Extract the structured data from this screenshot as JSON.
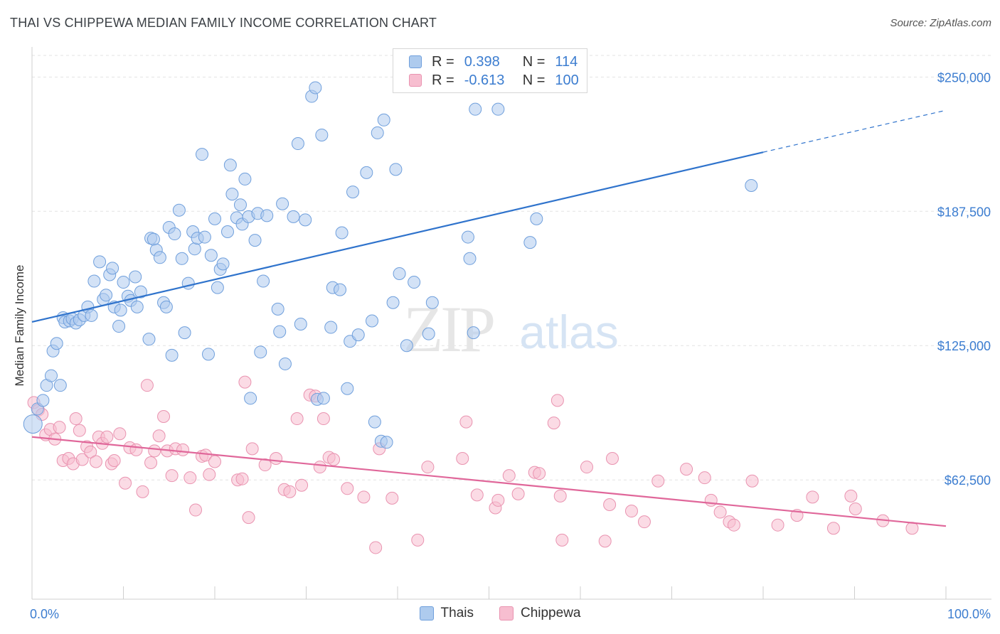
{
  "title": "THAI VS CHIPPEWA MEDIAN FAMILY INCOME CORRELATION CHART",
  "source": "Source: ZipAtlas.com",
  "watermark": {
    "zip": "ZIP",
    "atlas": "atlas"
  },
  "legend": {
    "rows": [
      {
        "r_label": "R =",
        "r_value": "0.398",
        "n_label": "N =",
        "n_value": "114"
      },
      {
        "r_label": "R =",
        "r_value": "-0.613",
        "n_label": "N =",
        "n_value": "100"
      }
    ]
  },
  "bottom_legend": {
    "thais": "Thais",
    "chippewa": "Chippewa"
  },
  "colors": {
    "thais_fill": "#aecbee",
    "thais_stroke": "#6f9fdc",
    "thais_line": "#2f73cc",
    "chippewa_fill": "#f7bed0",
    "chippewa_stroke": "#e993b0",
    "chippewa_line": "#e0679a",
    "axis_label": "#3c7dd0",
    "grid": "#e3e3e3"
  },
  "chart_data": {
    "type": "scatter",
    "title": "THAI VS CHIPPEWA MEDIAN FAMILY INCOME CORRELATION CHART",
    "xlabel": "",
    "ylabel": "Median Family Income",
    "xlim": [
      0,
      100
    ],
    "ylim": [
      7000,
      264000
    ],
    "x_tick_labels": [
      "0.0%",
      "100.0%"
    ],
    "y_ticks": [
      62500,
      125000,
      187500,
      250000
    ],
    "y_tick_labels": [
      "$62,500",
      "$125,000",
      "$187,500",
      "$250,000"
    ],
    "grid": true,
    "series": [
      {
        "name": "Thais",
        "R": 0.398,
        "N": 114,
        "trend": {
          "x0": 0,
          "y0": 136000,
          "x1": 80,
          "y1": 215000,
          "dash_x1": 100,
          "dash_y1": 234500
        },
        "points": [
          [
            0.1,
            88500
          ],
          [
            0.6,
            95500
          ],
          [
            1.2,
            99500
          ],
          [
            1.6,
            106500
          ],
          [
            2.1,
            111000
          ],
          [
            2.3,
            122500
          ],
          [
            2.7,
            126000
          ],
          [
            3.1,
            106500
          ],
          [
            3.4,
            138000
          ],
          [
            3.6,
            136000
          ],
          [
            4.1,
            136500
          ],
          [
            4.4,
            137500
          ],
          [
            4.8,
            135500
          ],
          [
            5.2,
            137000
          ],
          [
            5.7,
            139000
          ],
          [
            6.1,
            143000
          ],
          [
            6.5,
            139000
          ],
          [
            6.8,
            155000
          ],
          [
            7.4,
            164000
          ],
          [
            7.8,
            146500
          ],
          [
            8.1,
            148500
          ],
          [
            8.5,
            158000
          ],
          [
            8.8,
            161000
          ],
          [
            9.0,
            143000
          ],
          [
            9.5,
            134000
          ],
          [
            9.7,
            141500
          ],
          [
            10.0,
            154500
          ],
          [
            10.5,
            148000
          ],
          [
            10.8,
            146000
          ],
          [
            11.3,
            157000
          ],
          [
            11.5,
            143000
          ],
          [
            11.9,
            150000
          ],
          [
            12.8,
            128000
          ],
          [
            13.0,
            175000
          ],
          [
            13.3,
            174500
          ],
          [
            13.6,
            169500
          ],
          [
            14.0,
            166000
          ],
          [
            14.4,
            145000
          ],
          [
            14.7,
            143000
          ],
          [
            15.0,
            180000
          ],
          [
            15.3,
            120500
          ],
          [
            15.6,
            177000
          ],
          [
            16.1,
            188000
          ],
          [
            16.4,
            165500
          ],
          [
            16.7,
            131000
          ],
          [
            17.1,
            154000
          ],
          [
            17.6,
            178000
          ],
          [
            17.8,
            170000
          ],
          [
            18.1,
            175000
          ],
          [
            18.6,
            214000
          ],
          [
            18.9,
            175500
          ],
          [
            19.3,
            121000
          ],
          [
            19.6,
            167000
          ],
          [
            20.0,
            184000
          ],
          [
            20.3,
            152000
          ],
          [
            20.6,
            160500
          ],
          [
            20.9,
            163000
          ],
          [
            21.4,
            178000
          ],
          [
            21.7,
            209000
          ],
          [
            21.9,
            195500
          ],
          [
            22.4,
            184500
          ],
          [
            22.8,
            190500
          ],
          [
            23.0,
            181500
          ],
          [
            23.3,
            202500
          ],
          [
            23.7,
            185000
          ],
          [
            23.9,
            100500
          ],
          [
            24.4,
            174000
          ],
          [
            24.7,
            186500
          ],
          [
            25.0,
            122000
          ],
          [
            25.3,
            155000
          ],
          [
            25.7,
            185500
          ],
          [
            26.9,
            142000
          ],
          [
            27.1,
            131500
          ],
          [
            27.4,
            191000
          ],
          [
            27.7,
            116500
          ],
          [
            28.6,
            185000
          ],
          [
            29.1,
            219000
          ],
          [
            29.4,
            135000
          ],
          [
            29.9,
            183500
          ],
          [
            30.6,
            241000
          ],
          [
            31.0,
            245000
          ],
          [
            31.2,
            100000
          ],
          [
            31.7,
            223000
          ],
          [
            31.9,
            100500
          ],
          [
            32.7,
            133500
          ],
          [
            32.9,
            152000
          ],
          [
            33.7,
            151000
          ],
          [
            33.9,
            177500
          ],
          [
            34.5,
            105000
          ],
          [
            34.8,
            127000
          ],
          [
            35.1,
            196500
          ],
          [
            35.7,
            130000
          ],
          [
            36.6,
            205500
          ],
          [
            37.2,
            136500
          ],
          [
            37.5,
            89500
          ],
          [
            37.8,
            224000
          ],
          [
            38.2,
            80500
          ],
          [
            38.5,
            230000
          ],
          [
            38.8,
            80000
          ],
          [
            39.5,
            145000
          ],
          [
            39.8,
            207000
          ],
          [
            40.2,
            158500
          ],
          [
            41.0,
            125000
          ],
          [
            41.8,
            154500
          ],
          [
            43.4,
            130500
          ],
          [
            43.8,
            145000
          ],
          [
            47.7,
            175500
          ],
          [
            47.9,
            165500
          ],
          [
            48.3,
            131000
          ],
          [
            48.5,
            235000
          ],
          [
            51.0,
            235000
          ],
          [
            54.5,
            173000
          ],
          [
            55.2,
            184000
          ],
          [
            78.7,
            199500
          ]
        ]
      },
      {
        "name": "Chippewa",
        "R": -0.613,
        "N": 100,
        "trend": {
          "x0": 0,
          "y0": 82500,
          "x1": 100,
          "y1": 41000
        },
        "points": [
          [
            0.2,
            98500
          ],
          [
            0.7,
            95000
          ],
          [
            1.1,
            93000
          ],
          [
            1.5,
            83500
          ],
          [
            2.0,
            86000
          ],
          [
            2.5,
            81500
          ],
          [
            3.0,
            87000
          ],
          [
            3.4,
            71500
          ],
          [
            4.0,
            72500
          ],
          [
            4.5,
            70000
          ],
          [
            4.8,
            91000
          ],
          [
            5.2,
            85500
          ],
          [
            5.5,
            72000
          ],
          [
            6.0,
            78000
          ],
          [
            6.4,
            75500
          ],
          [
            7.0,
            71000
          ],
          [
            7.3,
            82500
          ],
          [
            7.7,
            79500
          ],
          [
            8.2,
            82500
          ],
          [
            8.7,
            70000
          ],
          [
            9.0,
            71500
          ],
          [
            9.6,
            84000
          ],
          [
            10.2,
            61000
          ],
          [
            10.7,
            77500
          ],
          [
            11.4,
            76500
          ],
          [
            12.1,
            57000
          ],
          [
            12.6,
            106500
          ],
          [
            13.0,
            70500
          ],
          [
            13.4,
            76000
          ],
          [
            13.9,
            83000
          ],
          [
            14.4,
            92000
          ],
          [
            14.8,
            76000
          ],
          [
            15.3,
            64500
          ],
          [
            15.7,
            77000
          ],
          [
            16.5,
            76500
          ],
          [
            17.3,
            63500
          ],
          [
            17.9,
            48500
          ],
          [
            18.6,
            73500
          ],
          [
            19.0,
            74000
          ],
          [
            19.4,
            65000
          ],
          [
            20.0,
            71000
          ],
          [
            22.5,
            62500
          ],
          [
            23.0,
            63000
          ],
          [
            23.3,
            108000
          ],
          [
            23.7,
            45000
          ],
          [
            24.1,
            77000
          ],
          [
            25.5,
            69500
          ],
          [
            26.7,
            72500
          ],
          [
            27.6,
            58000
          ],
          [
            28.2,
            57000
          ],
          [
            29.0,
            91000
          ],
          [
            29.5,
            60000
          ],
          [
            30.4,
            102000
          ],
          [
            31.0,
            101500
          ],
          [
            31.5,
            68500
          ],
          [
            31.9,
            91000
          ],
          [
            32.5,
            73000
          ],
          [
            33.0,
            72000
          ],
          [
            34.5,
            58500
          ],
          [
            36.3,
            54500
          ],
          [
            37.6,
            31000
          ],
          [
            38.0,
            77000
          ],
          [
            39.4,
            54000
          ],
          [
            42.2,
            34500
          ],
          [
            43.3,
            68500
          ],
          [
            47.1,
            72500
          ],
          [
            47.5,
            89500
          ],
          [
            48.7,
            55500
          ],
          [
            50.7,
            49500
          ],
          [
            51.0,
            53000
          ],
          [
            52.2,
            64500
          ],
          [
            53.2,
            56000
          ],
          [
            55.0,
            66000
          ],
          [
            55.5,
            65500
          ],
          [
            57.1,
            89000
          ],
          [
            57.5,
            99500
          ],
          [
            57.8,
            55000
          ],
          [
            58.0,
            34500
          ],
          [
            60.7,
            68500
          ],
          [
            62.7,
            34000
          ],
          [
            63.2,
            51000
          ],
          [
            63.5,
            72500
          ],
          [
            65.6,
            48000
          ],
          [
            67.0,
            43000
          ],
          [
            68.5,
            62000
          ],
          [
            71.6,
            67500
          ],
          [
            73.6,
            63500
          ],
          [
            74.3,
            53000
          ],
          [
            75.3,
            47500
          ],
          [
            76.3,
            43000
          ],
          [
            76.8,
            41500
          ],
          [
            78.8,
            62000
          ],
          [
            81.6,
            41500
          ],
          [
            83.7,
            46000
          ],
          [
            85.4,
            54500
          ],
          [
            87.7,
            40000
          ],
          [
            89.6,
            55000
          ],
          [
            90.1,
            49000
          ],
          [
            93.1,
            43500
          ],
          [
            96.3,
            40000
          ]
        ]
      }
    ]
  }
}
